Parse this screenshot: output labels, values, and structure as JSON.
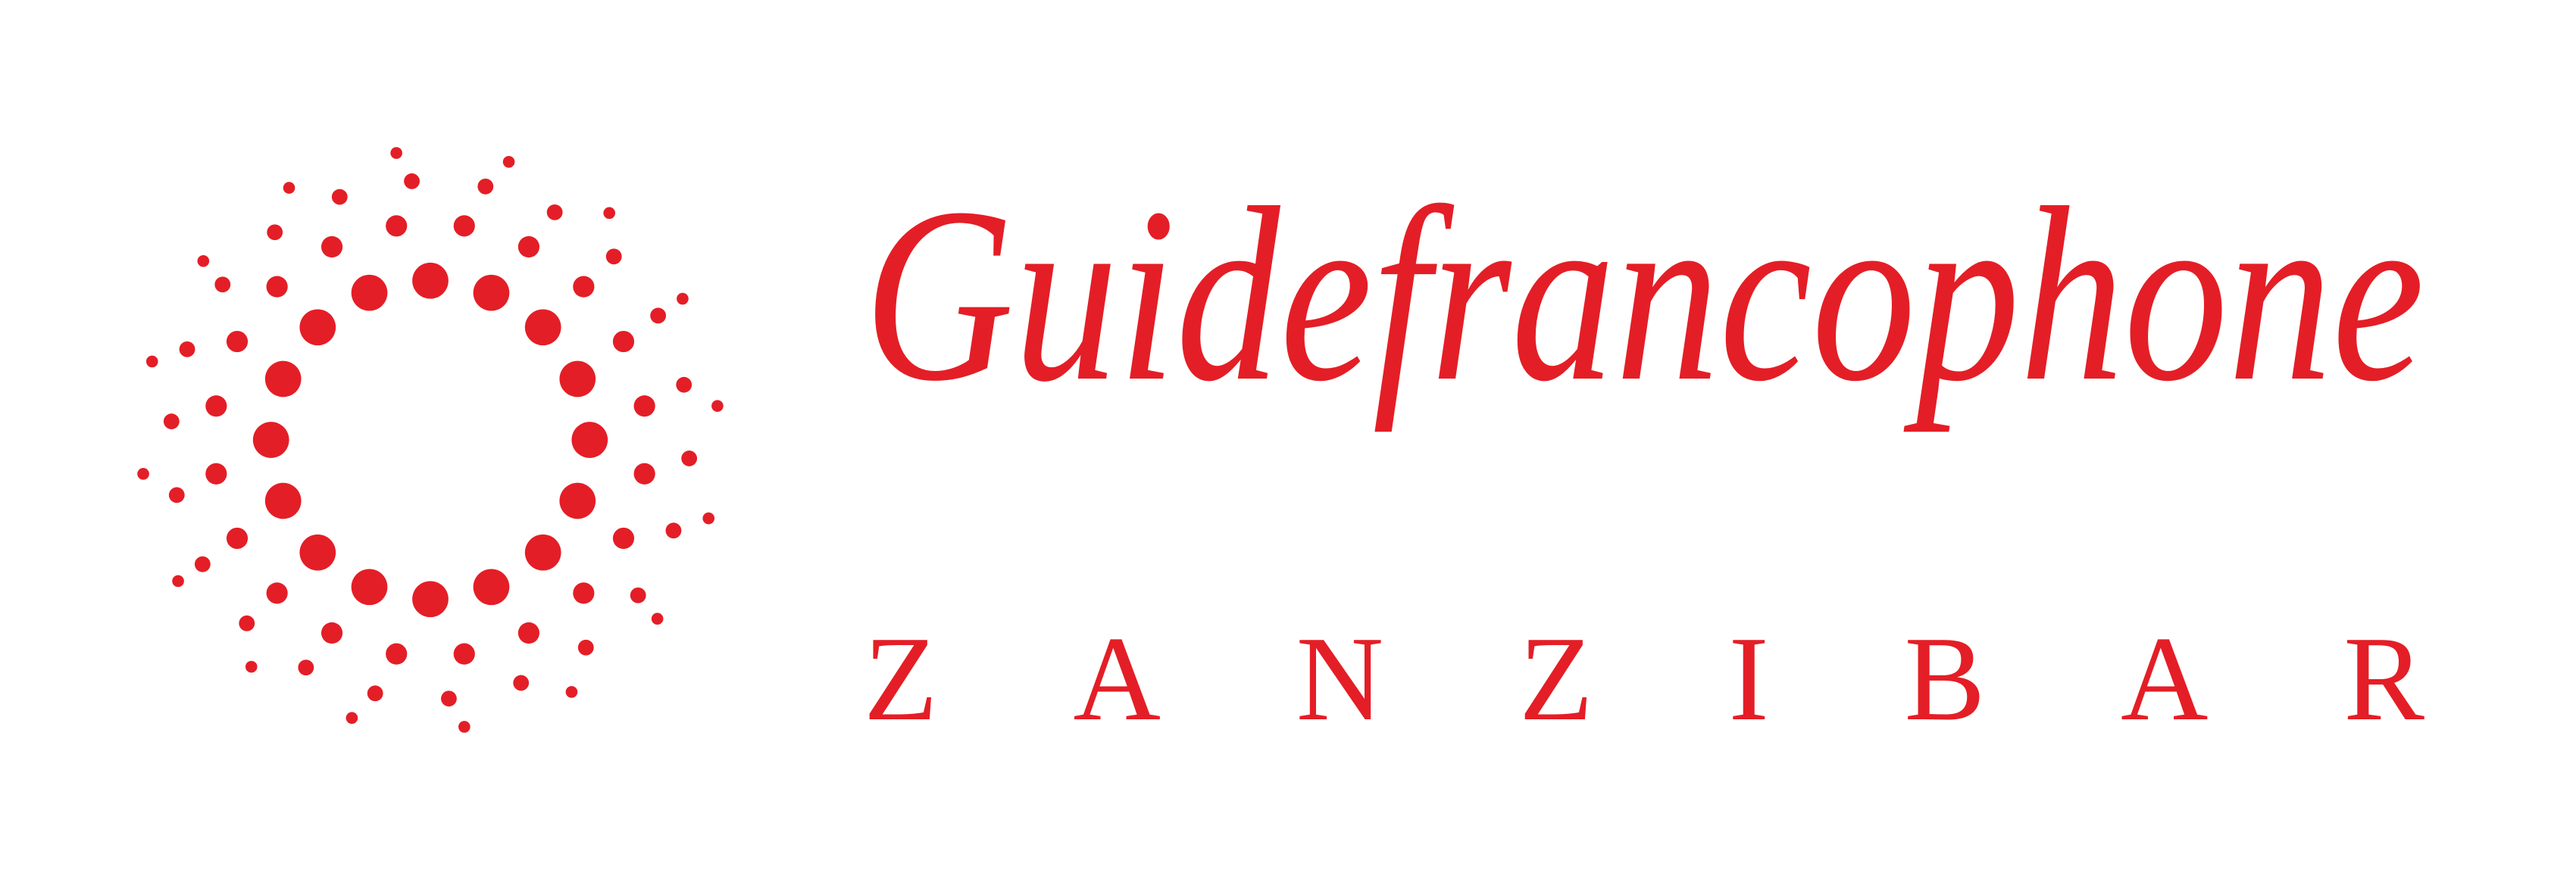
{
  "brand": {
    "name": "Guidefrancophone",
    "location": "ZANZIBAR"
  }
}
